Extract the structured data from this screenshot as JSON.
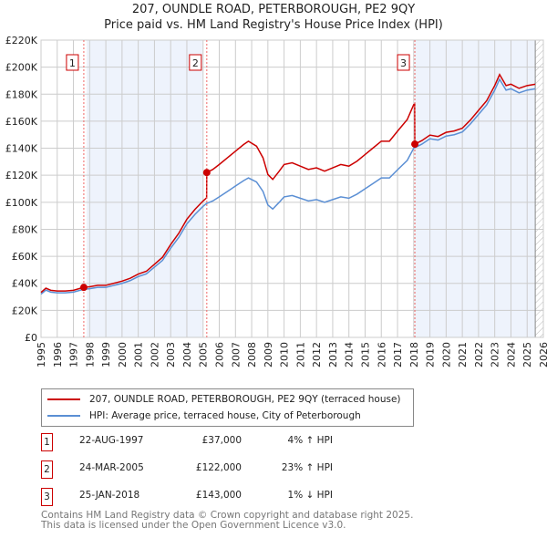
{
  "title": "207, OUNDLE ROAD, PETERBOROUGH, PE2 9QY",
  "subtitle": "Price paid vs. HM Land Registry's House Price Index (HPI)",
  "chart_data": {
    "type": "line",
    "xlim": [
      1995,
      2026
    ],
    "ylim": [
      0,
      220000
    ],
    "x_ticks": [
      1995,
      1996,
      1997,
      1998,
      1999,
      2000,
      2001,
      2002,
      2003,
      2004,
      2005,
      2006,
      2007,
      2008,
      2009,
      2010,
      2011,
      2012,
      2013,
      2014,
      2015,
      2016,
      2017,
      2018,
      2019,
      2020,
      2021,
      2022,
      2023,
      2024,
      2025,
      2026
    ],
    "y_ticks": [
      0,
      20000,
      40000,
      60000,
      80000,
      100000,
      120000,
      140000,
      160000,
      180000,
      200000,
      220000
    ],
    "y_tick_labels": [
      "£0",
      "£20K",
      "£40K",
      "£60K",
      "£80K",
      "£100K",
      "£120K",
      "£140K",
      "£160K",
      "£180K",
      "£200K",
      "£220K"
    ],
    "grid": true,
    "colors": {
      "property": "#cc0000",
      "hpi": "#5b8fd4",
      "shade": "#eef3fc"
    },
    "series": [
      {
        "name": "HPI: Average price, terraced house, City of Peterborough",
        "x": [
          1995,
          1995.3,
          1995.6,
          1996,
          1996.5,
          1997,
          1997.6,
          1998,
          1998.5,
          1999,
          1999.5,
          2000,
          2000.5,
          2001,
          2001.5,
          2002,
          2002.5,
          2003,
          2003.5,
          2004,
          2004.5,
          2005,
          2005.2,
          2005.6,
          2006,
          2006.5,
          2007,
          2007.5,
          2007.8,
          2008.3,
          2008.7,
          2009,
          2009.3,
          2009.7,
          2010,
          2010.5,
          2011,
          2011.5,
          2012,
          2012.5,
          2013,
          2013.5,
          2014,
          2014.5,
          2015,
          2015.5,
          2016,
          2016.5,
          2017,
          2017.6,
          2018,
          2018.5,
          2019,
          2019.5,
          2020,
          2020.5,
          2021,
          2021.5,
          2022,
          2022.5,
          2023,
          2023.3,
          2023.7,
          2024,
          2024.5,
          2025,
          2025.5
        ],
        "y": [
          32000,
          35000,
          33500,
          33000,
          33000,
          33500,
          35500,
          36000,
          37000,
          37000,
          38500,
          40000,
          42000,
          45000,
          47000,
          52000,
          57000,
          66000,
          74000,
          84000,
          91000,
          97000,
          99000,
          101000,
          104000,
          108000,
          112000,
          116000,
          118000,
          115000,
          108000,
          98000,
          95000,
          100000,
          104000,
          105000,
          103000,
          101000,
          102000,
          100000,
          102000,
          104000,
          103000,
          106000,
          110000,
          114000,
          118000,
          118000,
          124000,
          131000,
          140000,
          143000,
          147000,
          146000,
          149000,
          150000,
          152000,
          158000,
          165000,
          172000,
          183000,
          191000,
          183000,
          184000,
          181000,
          183000,
          184000
        ]
      },
      {
        "name": "207, OUNDLE ROAD, PETERBOROUGH, PE2 9QY (terraced house)"
      }
    ],
    "sales": [
      {
        "label": "1",
        "date": "22-AUG-1997",
        "x": 1997.64,
        "price": 37000,
        "price_label": "£37,000",
        "hpi_change": "4% ↑ HPI"
      },
      {
        "label": "2",
        "date": "24-MAR-2005",
        "x": 2005.23,
        "price": 122000,
        "price_label": "£122,000",
        "hpi_change": "23% ↑ HPI"
      },
      {
        "label": "3",
        "date": "25-JAN-2018",
        "x": 2018.07,
        "price": 143000,
        "price_label": "£143,000",
        "hpi_change": "1% ↓ HPI"
      }
    ]
  },
  "legend": {
    "property": "207, OUNDLE ROAD, PETERBOROUGH, PE2 9QY (terraced house)",
    "hpi": "HPI: Average price, terraced house, City of Peterborough"
  },
  "footer": {
    "line1": "Contains HM Land Registry data © Crown copyright and database right 2025.",
    "line2": "This data is licensed under the Open Government Licence v3.0."
  }
}
